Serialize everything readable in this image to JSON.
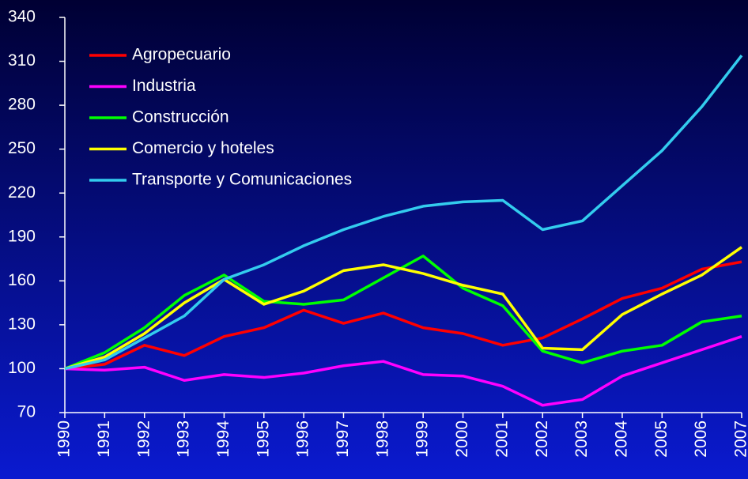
{
  "chart_data": {
    "type": "line",
    "categories": [
      "1990",
      "1991",
      "1992",
      "1993",
      "1994",
      "1995",
      "1996",
      "1997",
      "1998",
      "1999",
      "2000",
      "2001",
      "2002",
      "2003",
      "2004",
      "2005",
      "2006",
      "2007"
    ],
    "series": [
      {
        "name": "Agropecuario",
        "color": "#ff0000",
        "values": [
          100,
          103,
          116,
          109,
          122,
          128,
          140,
          131,
          138,
          128,
          124,
          116,
          121,
          134,
          148,
          155,
          168,
          173
        ]
      },
      {
        "name": "Industria",
        "color": "#ff00ff",
        "values": [
          100,
          99,
          101,
          92,
          96,
          94,
          97,
          102,
          105,
          96,
          95,
          88,
          75,
          79,
          95,
          104,
          113,
          122
        ]
      },
      {
        "name": "Construcción",
        "color": "#00ff00",
        "values": [
          100,
          111,
          128,
          150,
          164,
          146,
          144,
          147,
          162,
          177,
          155,
          143,
          112,
          104,
          112,
          116,
          132,
          136
        ]
      },
      {
        "name": "Comercio y hoteles",
        "color": "#ffff00",
        "values": [
          100,
          108,
          124,
          145,
          161,
          144,
          153,
          167,
          171,
          165,
          157,
          151,
          114,
          113,
          137,
          151,
          164,
          183
        ]
      },
      {
        "name": "Transporte y Comunicaciones",
        "color": "#33ccee",
        "values": [
          100,
          106,
          121,
          136,
          161,
          171,
          184,
          195,
          204,
          211,
          214,
          215,
          195,
          201,
          225,
          249,
          279,
          314
        ]
      }
    ],
    "ylim": [
      70,
      340
    ],
    "yticks": [
      70,
      100,
      130,
      160,
      190,
      220,
      250,
      280,
      310,
      340
    ]
  }
}
